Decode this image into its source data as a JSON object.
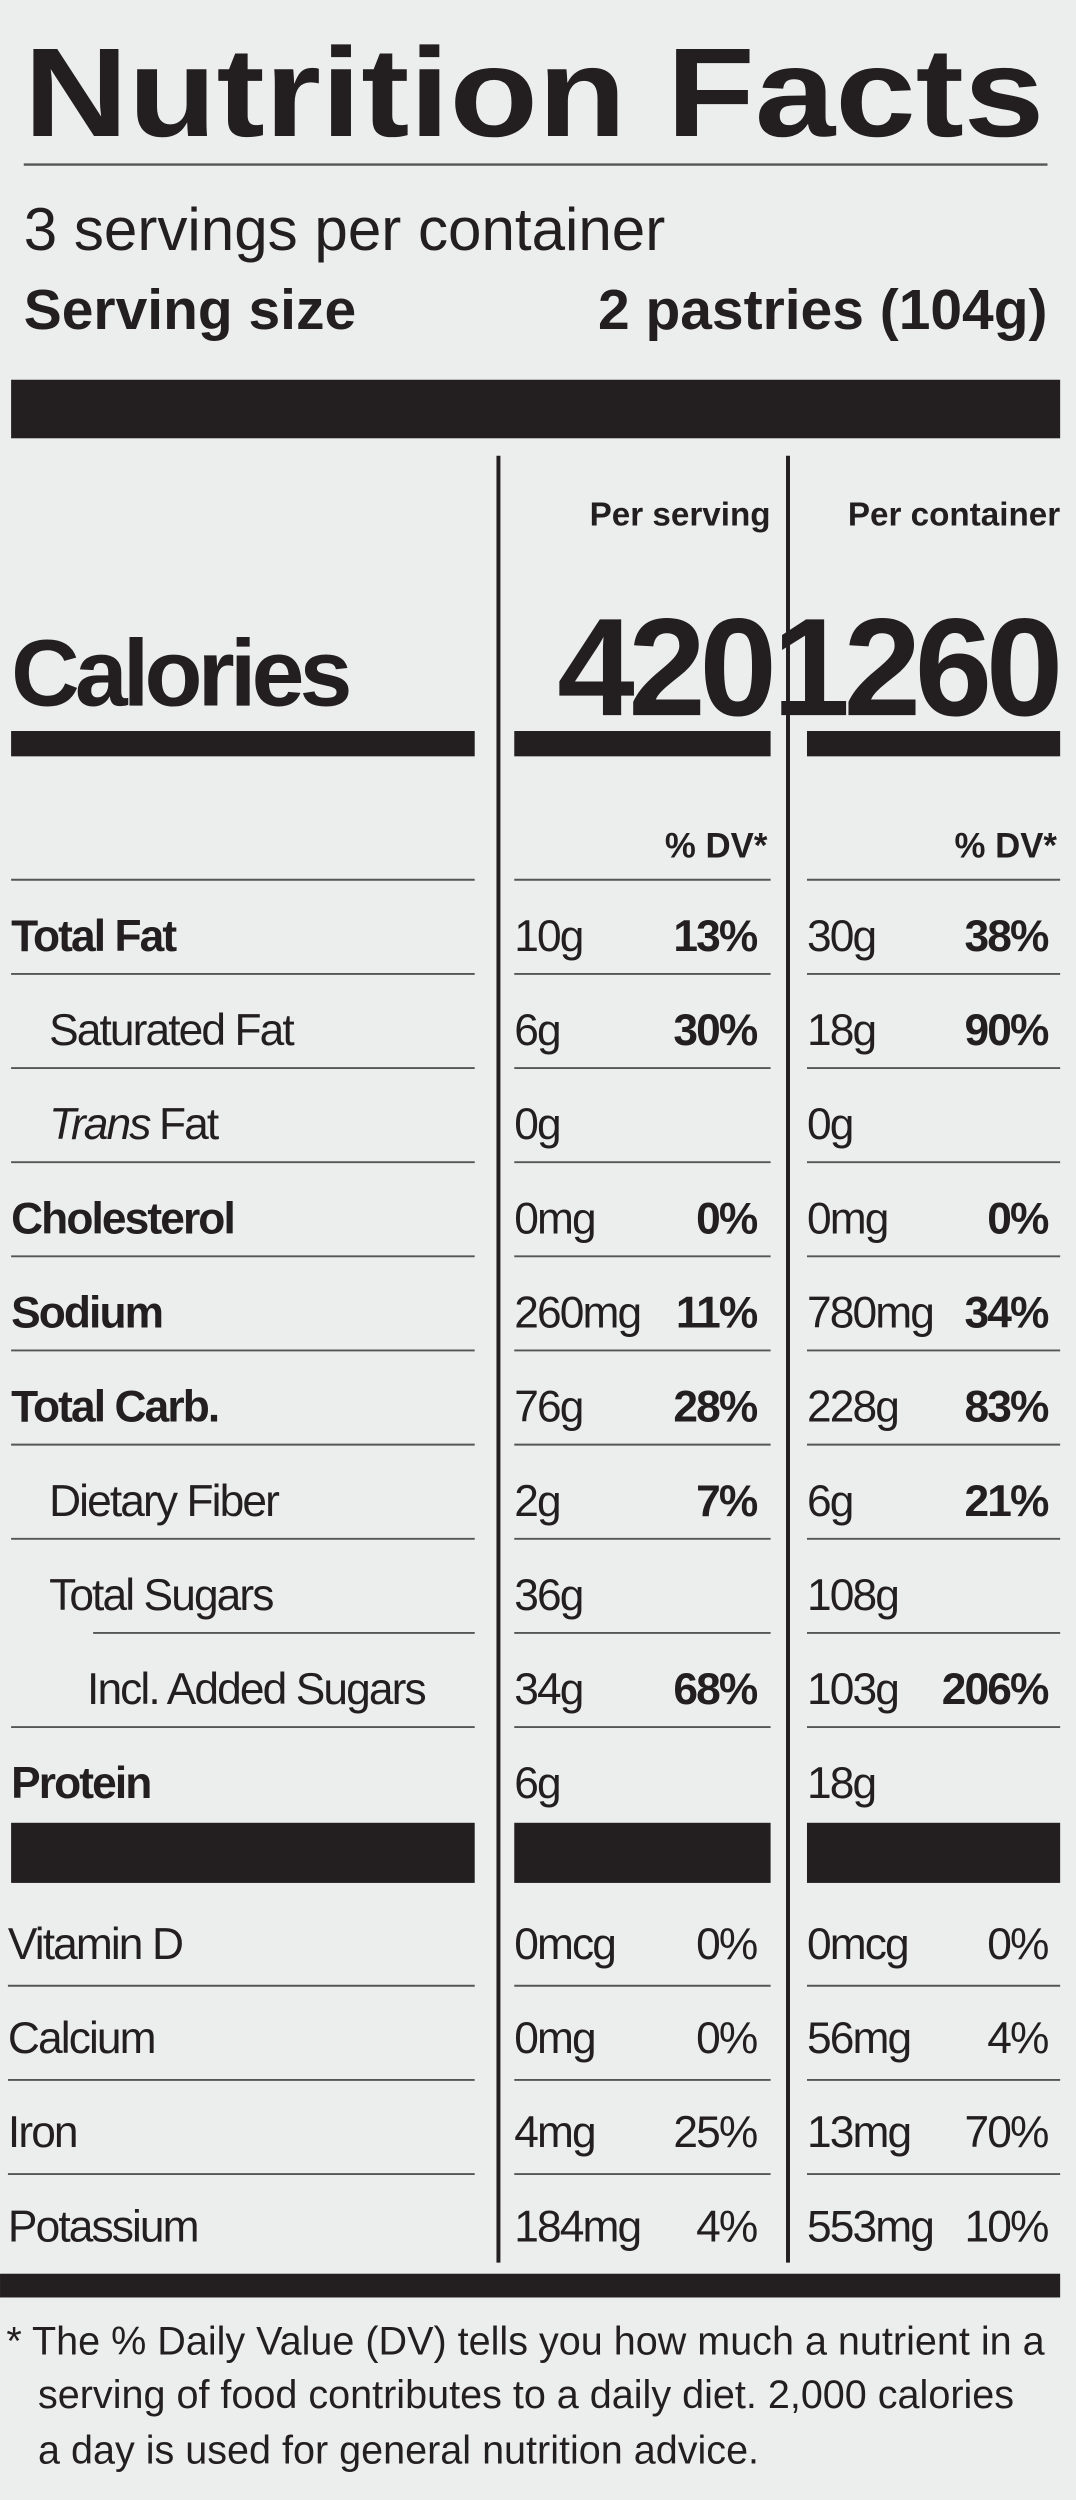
{
  "title": "Nutrition Facts",
  "servings_per_container": "3 servings per container",
  "serving_size": {
    "label": "Serving size",
    "value": "2 pastries (104g)"
  },
  "columns": [
    "Per serving",
    "Per container"
  ],
  "calories": {
    "label": "Calories",
    "values": [
      "420",
      "1260"
    ]
  },
  "dv_header": [
    "% DV*",
    "% DV*"
  ],
  "nutrients": [
    {
      "label": "Total Fat",
      "serving": [
        "10g",
        "13%"
      ],
      "container": [
        "30g",
        "38%"
      ]
    },
    {
      "label": "Saturated Fat",
      "serving": [
        "6g",
        "30%"
      ],
      "container": [
        "18g",
        "90%"
      ]
    },
    {
      "label_italic": "Trans",
      "label": "Fat",
      "serving": [
        "0g"
      ],
      "container": [
        "0g"
      ]
    },
    {
      "label": "Cholesterol",
      "serving": [
        "0mg",
        "0%"
      ],
      "container": [
        "0mg",
        "0%"
      ]
    },
    {
      "label": "Sodium",
      "serving": [
        "260mg",
        "11%"
      ],
      "container": [
        "780mg",
        "34%"
      ]
    },
    {
      "label": "Total Carb.",
      "serving": [
        "76g",
        "28%"
      ],
      "container": [
        "228g",
        "83%"
      ]
    },
    {
      "label": "Dietary Fiber",
      "serving": [
        "2g",
        "7%"
      ],
      "container": [
        "6g",
        "21%"
      ]
    },
    {
      "label": "Total Sugars",
      "serving": [
        "36g"
      ],
      "container": [
        "108g"
      ]
    },
    {
      "label": "Incl. Added Sugars",
      "serving": [
        "34g",
        "68%"
      ],
      "container": [
        "103g",
        "206%"
      ]
    },
    {
      "label": "Protein",
      "serving": [
        "6g"
      ],
      "container": [
        "18g"
      ]
    }
  ],
  "vitamins": [
    {
      "label": "Vitamin D",
      "serving": [
        "0mcg",
        "0%"
      ],
      "container": [
        "0mcg",
        "0%"
      ]
    },
    {
      "label": "Calcium",
      "serving": [
        "0mg",
        "0%"
      ],
      "container": [
        "56mg",
        "4%"
      ]
    },
    {
      "label": "Iron",
      "serving": [
        "4mg",
        "25%"
      ],
      "container": [
        "13mg",
        "70%"
      ]
    },
    {
      "label": "Potassium",
      "serving": [
        "184mg",
        "4%"
      ],
      "container": [
        "553mg",
        "10%"
      ]
    }
  ],
  "footnote": [
    "* The % Daily Value (DV) tells you how much a nutrient in a",
    "serving of food contributes to a daily diet. 2,000 calories",
    "a day is used for general nutrition advice."
  ]
}
